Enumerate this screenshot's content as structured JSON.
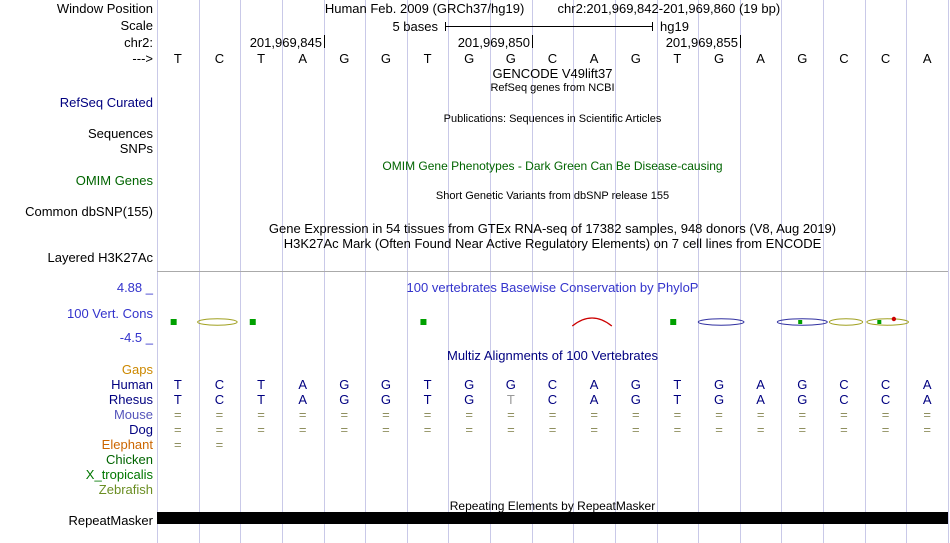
{
  "gutter": {
    "window_position": "Window Position",
    "scale": "Scale"
  },
  "header": {
    "assembly": "Human Feb. 2009 (GRCh37/hg19)",
    "range": "chr2:201,969,842-201,969,860 (19 bp)"
  },
  "scale": {
    "label": "5 bases",
    "genome": "hg19"
  },
  "ruler": {
    "chrom_label": "chr2:",
    "strand_label": "--->",
    "coords": [
      {
        "text": "201,969,845",
        "tick_base": 4
      },
      {
        "text": "201,969,850",
        "tick_base": 9
      },
      {
        "text": "201,969,855",
        "tick_base": 14
      }
    ]
  },
  "sequence": [
    "T",
    "C",
    "T",
    "A",
    "G",
    "G",
    "T",
    "G",
    "G",
    "C",
    "A",
    "G",
    "T",
    "G",
    "A",
    "G",
    "C",
    "C",
    "A"
  ],
  "tracks": {
    "gencode_title": "GENCODE V49lift37",
    "refseq_subtitle": "RefSeq genes from NCBI",
    "refseq_label": "RefSeq Curated",
    "publications_title": "Publications: Sequences in Scientific Articles",
    "sequences_label": "Sequences",
    "snps_label": "SNPs",
    "omim_title": "OMIM Gene Phenotypes - Dark Green Can Be Disease-causing",
    "omim_label": "OMIM Genes",
    "dbsnp_title": "Short Genetic Variants from dbSNP release 155",
    "dbsnp_label": "Common dbSNP(155)",
    "gtex_title": "Gene Expression in 54 tissues from GTEx RNA-seq of 17382 samples, 948 donors (V8, Aug 2019)",
    "h3k27ac_title": "H3K27Ac Mark (Often Found Near Active Regulatory Elements) on 7 cell lines from ENCODE",
    "h3k27ac_label": "Layered H3K27Ac",
    "repeat_title": "Repeating Elements by RepeatMasker",
    "repeat_label": "RepeatMasker"
  },
  "conservation": {
    "title": "100 vertebrates Basewise Conservation by PhyloP",
    "label": "100 Vert. Cons",
    "max": "4.88 _",
    "min": "-4.5 _",
    "marks": [
      {
        "shape": "square",
        "base": 0.4,
        "color": "#00a000"
      },
      {
        "shape": "lens",
        "base": 1.45,
        "width": 0.95,
        "color": "#a0a020"
      },
      {
        "shape": "square",
        "base": 2.3,
        "color": "#00a000"
      },
      {
        "shape": "square",
        "base": 6.4,
        "color": "#00a000"
      },
      {
        "shape": "arc",
        "base": 10.45,
        "width": 0.95,
        "color": "#cc0000"
      },
      {
        "shape": "square",
        "base": 12.4,
        "color": "#00a000"
      },
      {
        "shape": "lens",
        "base": 13.55,
        "width": 1.1,
        "color": "#3030a0"
      },
      {
        "shape": "lens",
        "base": 15.5,
        "width": 1.2,
        "color": "#3030a0"
      },
      {
        "shape": "square",
        "base": 15.45,
        "size": 4,
        "color": "#00a000"
      },
      {
        "shape": "lens",
        "base": 16.55,
        "width": 0.8,
        "color": "#a0a020"
      },
      {
        "shape": "square",
        "base": 17.35,
        "size": 4,
        "color": "#00a000"
      },
      {
        "shape": "lens",
        "base": 17.55,
        "width": 1.0,
        "color": "#a0a020"
      },
      {
        "shape": "dot",
        "base": 17.7,
        "color": "#cc0000"
      }
    ]
  },
  "multiz": {
    "title": "Multiz Alignments of 100 Vertebrates",
    "gaps_label": "Gaps",
    "base_color": "#000080",
    "gap_color": "#8f8f5f",
    "muted_color": "#999999",
    "species": [
      {
        "name": "Human",
        "color": "#000080",
        "cells": [
          "T",
          "C",
          "T",
          "A",
          "G",
          "G",
          "T",
          "G",
          "G",
          "C",
          "A",
          "G",
          "T",
          "G",
          "A",
          "G",
          "C",
          "C",
          "A"
        ]
      },
      {
        "name": "Rhesus",
        "color": "#000080",
        "muted": [
          8
        ],
        "cells": [
          "T",
          "C",
          "T",
          "A",
          "G",
          "G",
          "T",
          "G",
          "T",
          "C",
          "A",
          "G",
          "T",
          "G",
          "A",
          "G",
          "C",
          "C",
          "A"
        ]
      },
      {
        "name": "Mouse",
        "color": "#5555bb",
        "cells": [
          "=",
          "=",
          "=",
          "=",
          "=",
          "=",
          "=",
          "=",
          "=",
          "=",
          "=",
          "=",
          "=",
          "=",
          "=",
          "=",
          "=",
          "=",
          "="
        ]
      },
      {
        "name": "Dog",
        "color": "#000080",
        "cells": [
          "=",
          "=",
          "=",
          "=",
          "=",
          "=",
          "=",
          "=",
          "=",
          "=",
          "=",
          "=",
          "=",
          "=",
          "=",
          "=",
          "=",
          "=",
          "="
        ]
      },
      {
        "name": "Elephant",
        "color": "#cc6600",
        "cells": [
          "=",
          "=",
          "",
          "",
          "",
          "",
          "",
          "",
          "",
          "",
          "",
          "",
          "",
          "",
          "",
          "",
          "",
          "",
          ""
        ]
      },
      {
        "name": "Chicken",
        "color": "#006400",
        "cells": [
          "",
          "",
          "",
          "",
          "",
          "",
          "",
          "",
          "",
          "",
          "",
          "",
          "",
          "",
          "",
          "",
          "",
          "",
          ""
        ]
      },
      {
        "name": "X_tropicalis",
        "color": "#007700",
        "cells": [
          "",
          "",
          "",
          "",
          "",
          "",
          "",
          "",
          "",
          "",
          "",
          "",
          "",
          "",
          "",
          "",
          "",
          "",
          ""
        ]
      },
      {
        "name": "Zebrafish",
        "color": "#6b8e23",
        "cells": [
          "",
          "",
          "",
          "",
          "",
          "",
          "",
          "",
          "",
          "",
          "",
          "",
          "",
          "",
          "",
          "",
          "",
          "",
          ""
        ]
      }
    ]
  },
  "grid": {
    "n_bases": 19,
    "line_color": "#c9c9e8"
  },
  "colors": {
    "title_blue": "#3333cc",
    "navy": "#000080",
    "dark_green": "#006400",
    "orange": "#cc8800",
    "repeat_bar": "#000000"
  }
}
